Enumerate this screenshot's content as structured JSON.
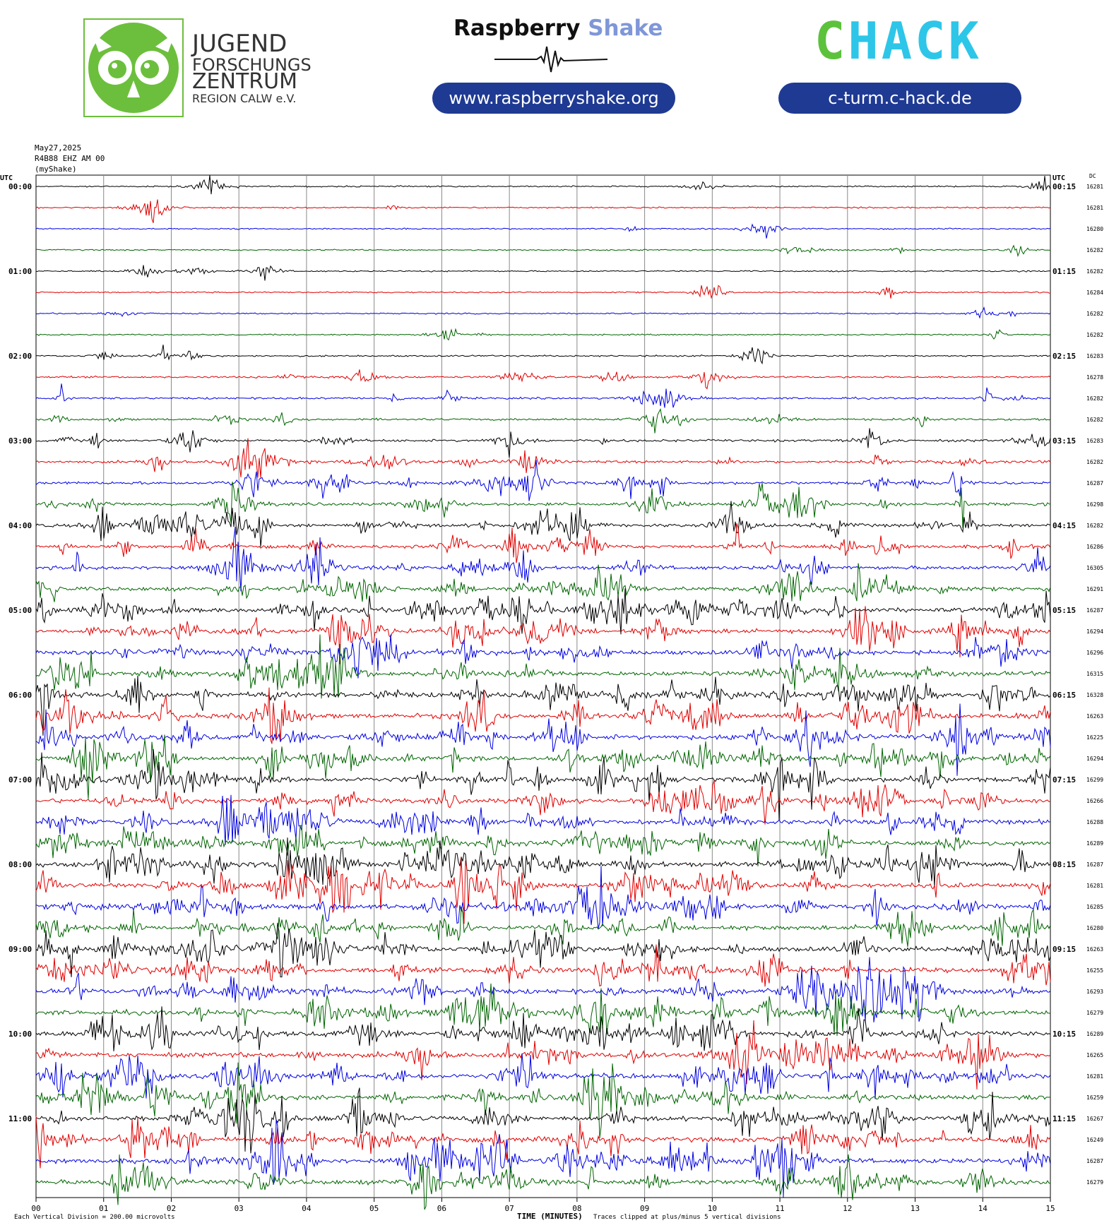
{
  "header": {
    "jfz_logo": {
      "line1": "JUGEND",
      "line2": "FORSCHUNGS",
      "line3": "ZENTRUM",
      "line4": "REGION CALW e.V.",
      "color": "#6cbf3c"
    },
    "raspberry": {
      "word1": "Raspberry",
      "word2": "Shake",
      "url": "www.raspberryshake.org"
    },
    "chack": {
      "letters": [
        "C",
        "H",
        "A",
        "C",
        "K"
      ],
      "colors": [
        "#5cc23c",
        "#2dc6e8",
        "#2dc6e8",
        "#2dc6e8",
        "#2dc6e8"
      ],
      "url": "c-turm.c-hack.de"
    },
    "pill_color": "#1f3a93"
  },
  "meta": {
    "date": "May27,2025",
    "station": "R4B88 EHZ AM 00",
    "source": "(myShake)"
  },
  "chart_data": {
    "type": "line",
    "title": "",
    "xlabel": "TIME (MINUTES)",
    "xlim": [
      0,
      15
    ],
    "x_ticks": [
      "00",
      "01",
      "02",
      "03",
      "04",
      "05",
      "06",
      "07",
      "08",
      "09",
      "10",
      "11",
      "12",
      "13",
      "14",
      "15"
    ],
    "left_axis_label": "UTC",
    "right_axis_label": "UTC",
    "dc_label": "DC",
    "trace_colors": [
      "#000000",
      "#e00000",
      "#0000e0",
      "#006400"
    ],
    "rows": [
      {
        "left": "00:00",
        "right": "00:15",
        "dc": "16281",
        "activity": 0.1
      },
      {
        "left": "",
        "right": "",
        "dc": "16281",
        "activity": 0.1
      },
      {
        "left": "",
        "right": "",
        "dc": "16280",
        "activity": 0.08
      },
      {
        "left": "",
        "right": "",
        "dc": "16282",
        "activity": 0.08
      },
      {
        "left": "01:00",
        "right": "01:15",
        "dc": "16282",
        "activity": 0.1
      },
      {
        "left": "",
        "right": "",
        "dc": "16284",
        "activity": 0.1
      },
      {
        "left": "",
        "right": "",
        "dc": "16282",
        "activity": 0.08
      },
      {
        "left": "",
        "right": "",
        "dc": "16282",
        "activity": 0.08
      },
      {
        "left": "02:00",
        "right": "02:15",
        "dc": "16283",
        "activity": 0.15
      },
      {
        "left": "",
        "right": "",
        "dc": "16278",
        "activity": 0.2
      },
      {
        "left": "",
        "right": "",
        "dc": "16282",
        "activity": 0.25
      },
      {
        "left": "",
        "right": "",
        "dc": "16282",
        "activity": 0.3
      },
      {
        "left": "03:00",
        "right": "03:15",
        "dc": "16283",
        "activity": 0.35
      },
      {
        "left": "",
        "right": "",
        "dc": "16282",
        "activity": 0.4
      },
      {
        "left": "",
        "right": "",
        "dc": "16287",
        "activity": 0.5
      },
      {
        "left": "",
        "right": "",
        "dc": "16298",
        "activity": 0.55
      },
      {
        "left": "04:00",
        "right": "04:15",
        "dc": "16282",
        "activity": 0.6
      },
      {
        "left": "",
        "right": "",
        "dc": "16286",
        "activity": 0.65
      },
      {
        "left": "",
        "right": "",
        "dc": "16305",
        "activity": 0.75
      },
      {
        "left": "",
        "right": "",
        "dc": "16291",
        "activity": 0.8
      },
      {
        "left": "05:00",
        "right": "05:15",
        "dc": "16287",
        "activity": 0.9
      },
      {
        "left": "",
        "right": "",
        "dc": "16294",
        "activity": 0.95
      },
      {
        "left": "",
        "right": "",
        "dc": "16296",
        "activity": 0.95
      },
      {
        "left": "",
        "right": "",
        "dc": "16315",
        "activity": 0.95
      },
      {
        "left": "06:00",
        "right": "06:15",
        "dc": "16328",
        "activity": 1.0
      },
      {
        "left": "",
        "right": "",
        "dc": "16263",
        "activity": 1.0
      },
      {
        "left": "",
        "right": "",
        "dc": "16225",
        "activity": 1.0
      },
      {
        "left": "",
        "right": "",
        "dc": "16294",
        "activity": 1.0
      },
      {
        "left": "07:00",
        "right": "07:15",
        "dc": "16299",
        "activity": 1.0
      },
      {
        "left": "",
        "right": "",
        "dc": "16266",
        "activity": 0.95
      },
      {
        "left": "",
        "right": "",
        "dc": "16288",
        "activity": 0.95
      },
      {
        "left": "",
        "right": "",
        "dc": "16289",
        "activity": 0.95
      },
      {
        "left": "08:00",
        "right": "08:15",
        "dc": "16287",
        "activity": 1.0
      },
      {
        "left": "",
        "right": "",
        "dc": "16281",
        "activity": 1.0
      },
      {
        "left": "",
        "right": "",
        "dc": "16285",
        "activity": 1.0
      },
      {
        "left": "",
        "right": "",
        "dc": "16280",
        "activity": 0.95
      },
      {
        "left": "09:00",
        "right": "09:15",
        "dc": "16263",
        "activity": 1.0
      },
      {
        "left": "",
        "right": "",
        "dc": "16255",
        "activity": 1.0
      },
      {
        "left": "",
        "right": "",
        "dc": "16293",
        "activity": 1.0
      },
      {
        "left": "",
        "right": "",
        "dc": "16279",
        "activity": 1.0
      },
      {
        "left": "10:00",
        "right": "10:15",
        "dc": "16289",
        "activity": 1.0
      },
      {
        "left": "",
        "right": "",
        "dc": "16265",
        "activity": 1.0
      },
      {
        "left": "",
        "right": "",
        "dc": "16281",
        "activity": 1.0
      },
      {
        "left": "",
        "right": "",
        "dc": "16259",
        "activity": 1.0
      },
      {
        "left": "11:00",
        "right": "11:15",
        "dc": "16267",
        "activity": 1.0
      },
      {
        "left": "",
        "right": "",
        "dc": "16249",
        "activity": 1.0
      },
      {
        "left": "",
        "right": "",
        "dc": "16287",
        "activity": 1.0
      },
      {
        "left": "",
        "right": "",
        "dc": "16279",
        "activity": 1.0
      }
    ],
    "footer_left": "Each Vertical Division =  200.00 microvolts",
    "footer_right": "Traces clipped at plus/minus 5 vertical divisions"
  }
}
